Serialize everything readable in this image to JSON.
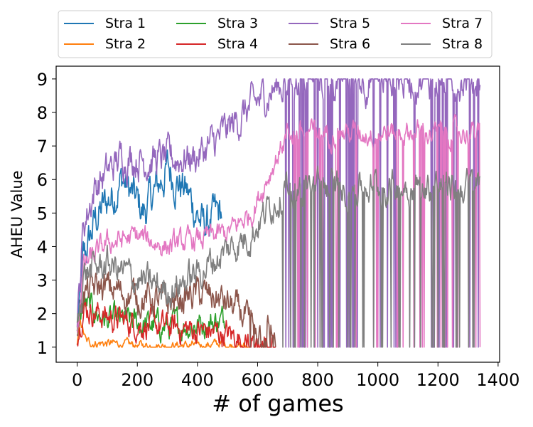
{
  "chart_data": {
    "type": "line",
    "title": "",
    "xlabel": "# of games",
    "ylabel": "AHEU Value",
    "xlim": [
      -70,
      1405
    ],
    "ylim": [
      0.55,
      9.38
    ],
    "xticks": [
      0,
      200,
      400,
      600,
      800,
      1000,
      1200,
      1400
    ],
    "yticks": [
      1,
      2,
      3,
      4,
      5,
      6,
      7,
      8,
      9
    ],
    "xtick_labels": [
      "0",
      "200",
      "400",
      "600",
      "800",
      "1000",
      "1200",
      "1400"
    ],
    "ytick_labels": [
      "1",
      "2",
      "3",
      "4",
      "5",
      "6",
      "7",
      "8",
      "9"
    ],
    "grid": false,
    "legend_position": "top-center",
    "legend_columns": 4,
    "series": [
      {
        "name": "Stra 1",
        "color": "#1f77b4",
        "x_range": [
          0,
          480
        ],
        "base": [
          [
            0,
            1.2
          ],
          [
            20,
            3.5
          ],
          [
            60,
            4.8
          ],
          [
            150,
            6.0
          ],
          [
            220,
            5.0
          ],
          [
            300,
            6.3
          ],
          [
            360,
            5.7
          ],
          [
            420,
            4.6
          ],
          [
            480,
            5.0
          ]
        ],
        "amp": 0.45
      },
      {
        "name": "Stra 2",
        "color": "#ff7f0e",
        "x_range": [
          0,
          570
        ],
        "base": [
          [
            0,
            1.0
          ],
          [
            10,
            1.8
          ],
          [
            30,
            1.15
          ],
          [
            200,
            1.05
          ],
          [
            400,
            1.05
          ],
          [
            470,
            1.1
          ],
          [
            520,
            1.05
          ],
          [
            570,
            1.0
          ]
        ],
        "amp": 0.1
      },
      {
        "name": "Stra 3",
        "color": "#2ca02c",
        "x_range": [
          0,
          490
        ],
        "base": [
          [
            0,
            1.3
          ],
          [
            20,
            2.3
          ],
          [
            100,
            1.8
          ],
          [
            200,
            1.7
          ],
          [
            300,
            1.6
          ],
          [
            400,
            1.7
          ],
          [
            490,
            1.8
          ]
        ],
        "amp": 0.3
      },
      {
        "name": "Stra 4",
        "color": "#d62728",
        "x_range": [
          0,
          660
        ],
        "base": [
          [
            0,
            1.4
          ],
          [
            20,
            2.2
          ],
          [
            100,
            1.9
          ],
          [
            200,
            1.7
          ],
          [
            300,
            1.6
          ],
          [
            400,
            1.5
          ],
          [
            490,
            1.4
          ],
          [
            560,
            1.2
          ],
          [
            660,
            1.05
          ]
        ],
        "amp": 0.3
      },
      {
        "name": "Stra 5",
        "color": "#9467bd",
        "x_range": [
          0,
          1340
        ],
        "base": [
          [
            0,
            1.5
          ],
          [
            20,
            4.6
          ],
          [
            60,
            5.8
          ],
          [
            150,
            6.7
          ],
          [
            220,
            6.6
          ],
          [
            300,
            6.6
          ],
          [
            400,
            6.7
          ],
          [
            470,
            7.2
          ],
          [
            560,
            8.0
          ],
          [
            640,
            8.6
          ],
          [
            700,
            9.0
          ],
          [
            1340,
            9.0
          ]
        ],
        "amp": 0.4
      },
      {
        "name": "Stra 6",
        "color": "#8c564b",
        "x_range": [
          0,
          660
        ],
        "base": [
          [
            0,
            1.5
          ],
          [
            20,
            2.6
          ],
          [
            80,
            2.8
          ],
          [
            200,
            2.5
          ],
          [
            300,
            2.3
          ],
          [
            400,
            2.6
          ],
          [
            480,
            2.4
          ],
          [
            560,
            1.9
          ],
          [
            660,
            1.3
          ]
        ],
        "amp": 0.35
      },
      {
        "name": "Stra 7",
        "color": "#e377c2",
        "x_range": [
          0,
          1340
        ],
        "base": [
          [
            0,
            1.5
          ],
          [
            20,
            3.4
          ],
          [
            100,
            4.1
          ],
          [
            200,
            4.3
          ],
          [
            300,
            4.0
          ],
          [
            400,
            4.2
          ],
          [
            500,
            4.4
          ],
          [
            580,
            5.0
          ],
          [
            640,
            6.2
          ],
          [
            700,
            7.4
          ],
          [
            1340,
            7.4
          ]
        ],
        "amp": 0.25
      },
      {
        "name": "Stra 8",
        "color": "#7f7f7f",
        "x_range": [
          0,
          1340
        ],
        "base": [
          [
            0,
            1.5
          ],
          [
            20,
            3.2
          ],
          [
            100,
            3.5
          ],
          [
            200,
            3.0
          ],
          [
            300,
            2.7
          ],
          [
            400,
            3.2
          ],
          [
            500,
            3.9
          ],
          [
            580,
            4.4
          ],
          [
            640,
            5.2
          ],
          [
            700,
            5.8
          ],
          [
            1340,
            5.8
          ]
        ],
        "amp": 0.35
      }
    ]
  },
  "legend": {
    "items": [
      {
        "label": "Stra 1",
        "color": "#1f77b4"
      },
      {
        "label": "Stra 2",
        "color": "#ff7f0e"
      },
      {
        "label": "Stra 3",
        "color": "#2ca02c"
      },
      {
        "label": "Stra 4",
        "color": "#d62728"
      },
      {
        "label": "Stra 5",
        "color": "#9467bd"
      },
      {
        "label": "Stra 6",
        "color": "#8c564b"
      },
      {
        "label": "Stra 7",
        "color": "#e377c2"
      },
      {
        "label": "Stra 8",
        "color": "#7f7f7f"
      }
    ]
  }
}
